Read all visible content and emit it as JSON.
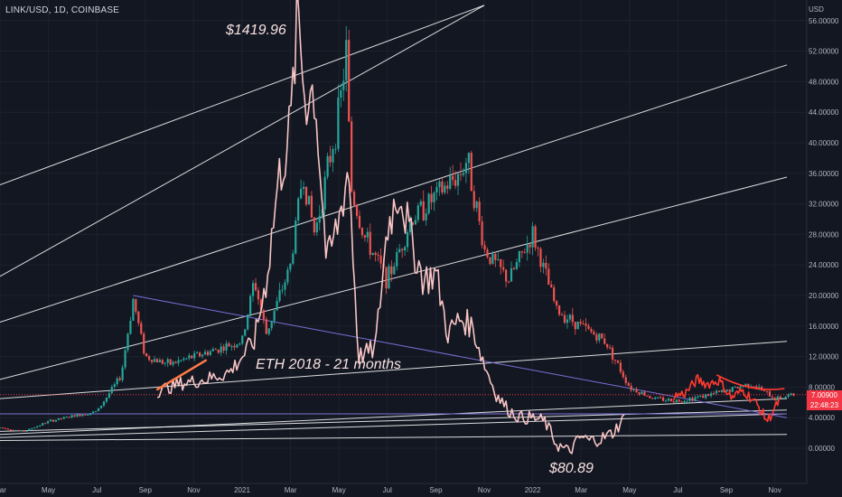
{
  "symbol": "LINK/USD, 1D, COINBASE",
  "currency": "USD",
  "last_price": "7.00900",
  "countdown": "22:48:23",
  "annotations": {
    "eth_peak": "$1419.96",
    "eth_bottom": "$80.89",
    "eth_note": "ETH 2018 - 21 months"
  },
  "colors": {
    "background": "#131722",
    "up": "#26a69a",
    "down": "#ef5350",
    "eth_overlay": "#f8c4c4",
    "current_fractal": "#ff3b30",
    "trendline": "#ffffff",
    "purple_line": "#7b6fd6",
    "note_arrow": "#ff7a45"
  },
  "chart_data": {
    "type": "candlestick",
    "title": "LINK/USD, 1D, COINBASE",
    "ylabel": "USD",
    "ylim": [
      -2,
      58
    ],
    "x_tick_labels": [
      "Mar",
      "May",
      "Jul",
      "Sep",
      "Nov",
      "2021",
      "Mar",
      "May",
      "Jul",
      "Sep",
      "Nov",
      "2022",
      "Mar",
      "May",
      "Jul",
      "Sep",
      "Nov"
    ],
    "y_ticks": [
      0,
      4,
      8,
      12,
      16,
      20,
      24,
      28,
      32,
      36,
      40,
      44,
      48,
      52,
      56
    ],
    "y_tick_labels": [
      "0.00000",
      "4.00000",
      "8.00000",
      "12.00000",
      "16.00000",
      "20.00000",
      "24.00000",
      "28.00000",
      "32.00000",
      "36.00000",
      "40.00000",
      "44.00000",
      "48.00000",
      "52.00000",
      "56.00000"
    ],
    "link_price_path": {
      "x_months": [
        0,
        1,
        2,
        3,
        4,
        5,
        5.5,
        6,
        7,
        8,
        9,
        10,
        10.5,
        11,
        12,
        12.5,
        13,
        14,
        14.3,
        14.5,
        15,
        16,
        17,
        18,
        19,
        19.3,
        20,
        21,
        22,
        23,
        24,
        25,
        26,
        27,
        28,
        29,
        30,
        31,
        32,
        32.8
      ],
      "close": [
        2.7,
        2.2,
        3.5,
        4.2,
        4.8,
        9.5,
        19.5,
        12,
        11,
        12,
        13,
        14,
        22,
        15,
        24,
        36,
        28,
        44,
        52,
        34,
        28,
        22,
        30,
        33,
        36,
        38,
        26,
        22,
        28,
        18,
        16,
        14,
        8,
        6.5,
        6.2,
        6.8,
        7.5,
        8.5,
        6.5,
        7
      ]
    },
    "eth_2018_overlay": {
      "name": "ETH 2018 - 21 months",
      "labels": [
        "$1419.96",
        "$80.89"
      ],
      "x_months": [
        6.5,
        7.5,
        8.5,
        9.5,
        10.5,
        11,
        11.5,
        12,
        12.3,
        12.6,
        13,
        13.5,
        14,
        14.4,
        14.8,
        15.5,
        16,
        16.5,
        17,
        17.5,
        18,
        18.5,
        19,
        19.5,
        20,
        20.5,
        21,
        21.5,
        22,
        22.5,
        23,
        23.5,
        24,
        24.3,
        24.8,
        25.3,
        25.8
      ],
      "values": [
        7.5,
        8.5,
        9,
        10,
        14,
        22,
        35,
        42,
        57,
        46,
        47,
        24,
        30,
        37,
        12,
        13,
        29,
        34,
        27,
        22,
        23,
        15,
        17,
        16,
        11,
        7,
        5,
        4,
        4,
        3.5,
        0.5,
        -0.5,
        1.5,
        1,
        1.2,
        2,
        4
      ]
    },
    "current_fractal": {
      "x_months": [
        27.8,
        28.3,
        28.8,
        29.2,
        29.7,
        30.2,
        30.7,
        31.2,
        31.7,
        32.2
      ],
      "values": [
        6.8,
        7.2,
        9,
        8.4,
        8.9,
        6.6,
        7.6,
        6,
        3.6,
        6.3
      ]
    },
    "trendlines": [
      {
        "from": [
          0,
          6.5
        ],
        "to": [
          32.5,
          14
        ]
      },
      {
        "from": [
          0,
          9
        ],
        "to": [
          32.5,
          35.5
        ]
      },
      {
        "from": [
          0,
          16.5
        ],
        "to": [
          32.5,
          50.2
        ]
      },
      {
        "from": [
          0,
          22.5
        ],
        "to": [
          20,
          58
        ]
      },
      {
        "from": [
          0,
          34.5
        ],
        "to": [
          20,
          58
        ]
      },
      {
        "from": [
          0,
          2.2
        ],
        "to": [
          32.5,
          5
        ]
      },
      {
        "from": [
          0,
          1.4
        ],
        "to": [
          32.5,
          4.5
        ]
      },
      {
        "from": [
          0,
          1.8
        ],
        "to": [
          32.5,
          6.5
        ]
      },
      {
        "from": [
          0,
          1
        ],
        "to": [
          32.5,
          1.8
        ]
      }
    ],
    "purple_lines": [
      {
        "from": [
          5.5,
          20
        ],
        "to": [
          32.5,
          4
        ]
      },
      {
        "from": [
          0,
          4.5
        ],
        "to": [
          32.5,
          4.5
        ]
      }
    ],
    "dotted_price_line": 7.009,
    "note_arrow": {
      "from": [
        6.5,
        7.7
      ],
      "to": [
        8.5,
        11.5
      ]
    },
    "grid": true,
    "legend": "none"
  }
}
